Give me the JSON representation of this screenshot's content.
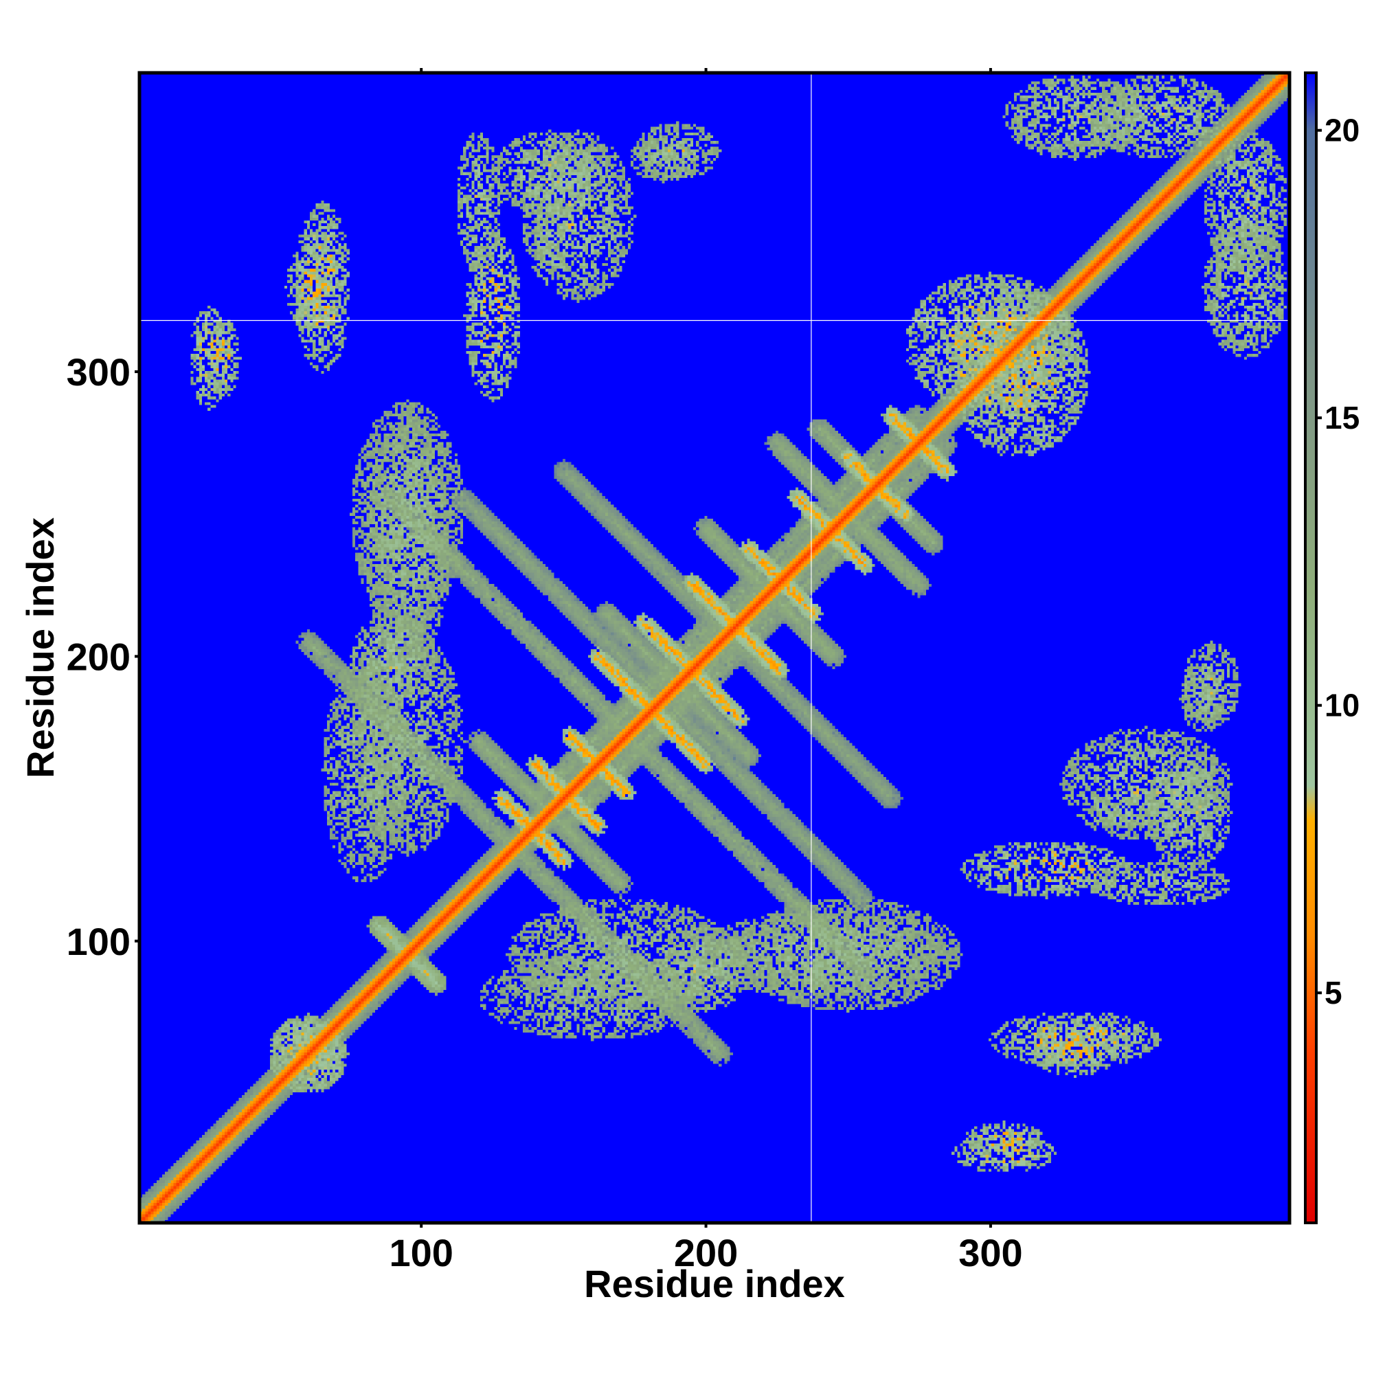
{
  "chart_data": {
    "type": "heatmap",
    "title": "",
    "xlabel": "Residue index",
    "ylabel": "Residue index",
    "xlim": [
      1,
      405
    ],
    "ylim": [
      1,
      405
    ],
    "x_ticks": [
      {
        "value": 100,
        "label": "100"
      },
      {
        "value": 200,
        "label": "200"
      },
      {
        "value": 300,
        "label": "300"
      }
    ],
    "y_ticks": [
      {
        "value": 100,
        "label": "100"
      },
      {
        "value": 200,
        "label": "200"
      },
      {
        "value": 300,
        "label": "300"
      }
    ],
    "marker_lines": {
      "x": 237,
      "y": 318
    },
    "colorbar": {
      "range": [
        1,
        21
      ],
      "ticks": [
        {
          "value": 5,
          "label": "5"
        },
        {
          "value": 10,
          "label": "10"
        },
        {
          "value": 15,
          "label": "15"
        },
        {
          "value": 20,
          "label": "20"
        }
      ],
      "stops": [
        {
          "value": 1,
          "color": "#e00000"
        },
        {
          "value": 4,
          "color": "#ff4000"
        },
        {
          "value": 6,
          "color": "#ff8c00"
        },
        {
          "value": 8,
          "color": "#ffb000"
        },
        {
          "value": 8.6,
          "color": "#9fc6a0"
        },
        {
          "value": 12,
          "color": "#8fae7a"
        },
        {
          "value": 16,
          "color": "#7c9488"
        },
        {
          "value": 20,
          "color": "#506ea0"
        },
        {
          "value": 21,
          "color": "#0000ff"
        }
      ]
    },
    "background_value": 21,
    "background_color": "#0000ff",
    "structure": {
      "diagonal": {
        "value": 3.8
      },
      "bands": [
        {
          "kind": "diag",
          "from": [
            1,
            1
          ],
          "to": [
            405,
            405
          ],
          "width": 6,
          "value": 9
        },
        {
          "kind": "anti",
          "from": [
            85,
            105
          ],
          "to": [
            105,
            85
          ],
          "width": 4,
          "value": 8
        },
        {
          "kind": "anti",
          "from": [
            128,
            150
          ],
          "to": [
            150,
            128
          ],
          "width": 3,
          "value": 6
        },
        {
          "kind": "anti",
          "from": [
            140,
            162
          ],
          "to": [
            162,
            140
          ],
          "width": 3,
          "value": 6
        },
        {
          "kind": "anti",
          "from": [
            152,
            172
          ],
          "to": [
            172,
            152
          ],
          "width": 3,
          "value": 6
        },
        {
          "kind": "anti",
          "from": [
            162,
            200
          ],
          "to": [
            200,
            162
          ],
          "width": 3,
          "value": 6
        },
        {
          "kind": "anti",
          "from": [
            178,
            212
          ],
          "to": [
            212,
            178
          ],
          "width": 3,
          "value": 6
        },
        {
          "kind": "anti",
          "from": [
            195,
            226
          ],
          "to": [
            226,
            195
          ],
          "width": 3,
          "value": 6
        },
        {
          "kind": "anti",
          "from": [
            215,
            238
          ],
          "to": [
            238,
            215
          ],
          "width": 3,
          "value": 6
        },
        {
          "kind": "anti",
          "from": [
            232,
            256
          ],
          "to": [
            256,
            232
          ],
          "width": 3,
          "value": 6
        },
        {
          "kind": "anti",
          "from": [
            250,
            270
          ],
          "to": [
            270,
            250
          ],
          "width": 3,
          "value": 6
        },
        {
          "kind": "anti",
          "from": [
            265,
            285
          ],
          "to": [
            285,
            265
          ],
          "width": 3,
          "value": 6
        }
      ],
      "grid_paths": [
        {
          "from": [
            130,
            135
          ],
          "to": [
            205,
            60
          ],
          "width": 4,
          "value": 11
        },
        {
          "from": [
            175,
            170
          ],
          "to": [
            255,
            90
          ],
          "width": 4,
          "value": 11
        },
        {
          "from": [
            120,
            170
          ],
          "to": [
            170,
            120
          ],
          "width": 4,
          "value": 11
        },
        {
          "from": [
            165,
            215
          ],
          "to": [
            215,
            165
          ],
          "width": 4,
          "value": 11
        },
        {
          "from": [
            200,
            245
          ],
          "to": [
            245,
            200
          ],
          "width": 4,
          "value": 11
        },
        {
          "from": [
            225,
            275
          ],
          "to": [
            275,
            225
          ],
          "width": 4,
          "value": 11
        },
        {
          "from": [
            240,
            280
          ],
          "to": [
            280,
            240
          ],
          "width": 4,
          "value": 11
        },
        {
          "from": [
            150,
            265
          ],
          "to": [
            265,
            150
          ],
          "width": 4,
          "value": 12
        },
        {
          "from": [
            115,
            255
          ],
          "to": [
            255,
            115
          ],
          "width": 4,
          "value": 12
        },
        {
          "from": [
            140,
            150
          ],
          "to": [
            285,
            285
          ],
          "width": 4,
          "value": 11
        },
        {
          "from": [
            150,
            140
          ],
          "to": [
            285,
            275
          ],
          "width": 4,
          "value": 11
        }
      ],
      "clusters": [
        {
          "center": [
            30,
            305
          ],
          "radius": [
            6,
            14
          ],
          "value": 10
        },
        {
          "center": [
            62,
            330
          ],
          "radius": [
            10,
            16
          ],
          "value": 10
        },
        {
          "center": [
            120,
            360
          ],
          "radius": [
            8,
            25
          ],
          "value": 11
        },
        {
          "center": [
            145,
            370
          ],
          "radius": [
            20,
            15
          ],
          "value": 11
        },
        {
          "center": [
            185,
            375
          ],
          "radius": [
            12,
            8
          ],
          "value": 12
        },
        {
          "center": [
            330,
            390
          ],
          "radius": [
            25,
            15
          ],
          "value": 11
        },
        {
          "center": [
            390,
            360
          ],
          "radius": [
            15,
            25
          ],
          "value": 11
        },
        {
          "center": [
            305,
            25
          ],
          "radius": [
            18,
            7
          ],
          "value": 10
        },
        {
          "center": [
            330,
            65
          ],
          "radius": [
            30,
            10
          ],
          "value": 10
        },
        {
          "center": [
            355,
            155
          ],
          "radius": [
            30,
            20
          ],
          "value": 11
        },
        {
          "center": [
            378,
            190
          ],
          "radius": [
            10,
            15
          ],
          "value": 11
        },
        {
          "center": [
            320,
            125
          ],
          "radius": [
            30,
            10
          ],
          "value": 10
        },
        {
          "center": [
            345,
            145
          ],
          "radius": [
            10,
            6
          ],
          "value": 11
        },
        {
          "center": [
            60,
            60
          ],
          "radius": [
            14,
            14
          ],
          "value": 10
        },
        {
          "center": [
            95,
            170
          ],
          "radius": [
            20,
            40
          ],
          "value": 12
        },
        {
          "center": [
            95,
            250
          ],
          "radius": [
            20,
            40
          ],
          "value": 12
        },
        {
          "center": [
            90,
            200
          ],
          "radius": [
            15,
            15
          ],
          "value": 11
        },
        {
          "center": [
            160,
            80
          ],
          "radius": [
            40,
            15
          ],
          "value": 12
        },
        {
          "center": [
            240,
            95
          ],
          "radius": [
            45,
            15
          ],
          "value": 12
        },
        {
          "center": [
            310,
            300
          ],
          "radius": [
            25,
            30
          ],
          "value": 10
        }
      ]
    }
  }
}
